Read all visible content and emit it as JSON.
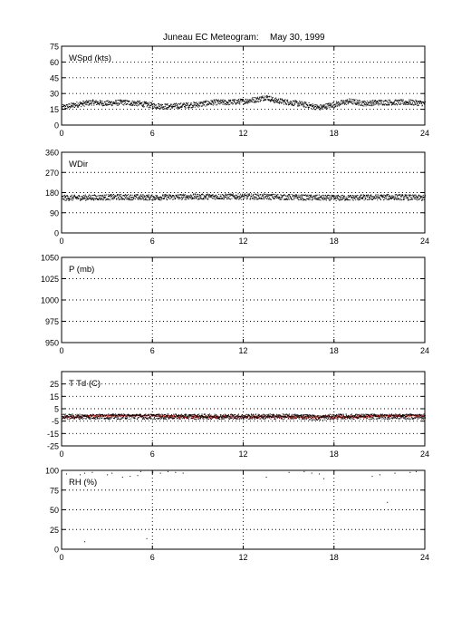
{
  "figure": {
    "title": "Juneau EC Meteogram:",
    "date": "May 30, 1999"
  },
  "chart_data": [
    {
      "type": "scatter",
      "label": "WSpd (kts)",
      "x_range": [
        0,
        24
      ],
      "x_ticks": [
        0,
        6,
        12,
        18,
        24
      ],
      "ylim": [
        0,
        75
      ],
      "y_ticks": [
        0,
        15,
        30,
        45,
        60,
        75
      ],
      "grid": true,
      "series": [
        {
          "color": "#000000",
          "marker": "dot",
          "x": [
            0,
            1,
            2,
            3,
            4,
            5,
            6,
            7,
            8,
            9,
            10,
            11,
            12,
            13,
            13.5,
            14,
            15,
            16,
            17,
            18,
            19,
            20,
            21,
            22,
            23,
            24
          ],
          "y": [
            17,
            20,
            22,
            21,
            22,
            21,
            19,
            18,
            19,
            20,
            22,
            22,
            23,
            25,
            27,
            24,
            22,
            20,
            17,
            20,
            23,
            21,
            22,
            22,
            22,
            21
          ]
        }
      ]
    },
    {
      "type": "scatter",
      "label": "WDir",
      "x_range": [
        0,
        24
      ],
      "x_ticks": [
        0,
        6,
        12,
        18,
        24
      ],
      "ylim": [
        0,
        360
      ],
      "y_ticks": [
        0,
        90,
        180,
        270,
        360
      ],
      "grid": true,
      "series": [
        {
          "color": "#000000",
          "marker": "dot",
          "x": [
            0,
            2,
            4,
            6,
            8,
            10,
            12,
            14,
            16,
            18,
            20,
            22,
            24
          ],
          "y": [
            158,
            160,
            162,
            160,
            163,
            164,
            164,
            163,
            160,
            158,
            160,
            162,
            158
          ]
        }
      ]
    },
    {
      "type": "scatter",
      "label": "P (mb)",
      "x_range": [
        0,
        24
      ],
      "x_ticks": [
        0,
        6,
        12,
        18,
        24
      ],
      "ylim": [
        950,
        1050
      ],
      "y_ticks": [
        950,
        975,
        1000,
        1025,
        1050
      ],
      "grid": true,
      "series": []
    },
    {
      "type": "scatter",
      "label": "T Td (C)",
      "x_range": [
        0,
        24
      ],
      "x_ticks": [
        0,
        6,
        12,
        18,
        24
      ],
      "ylim": [
        -25,
        35
      ],
      "y_ticks": [
        -25,
        -15,
        -5,
        5,
        15,
        25
      ],
      "grid": true,
      "series": [
        {
          "color": "#cc0000",
          "marker": "dot",
          "x": [
            0,
            1,
            2,
            4,
            6,
            8,
            10,
            12,
            14,
            16,
            17,
            17.5,
            18,
            20,
            21,
            22,
            24
          ],
          "y": [
            -1,
            -1,
            0,
            0,
            0,
            -1,
            -1,
            -1,
            -1,
            -1,
            -1,
            -1,
            -1,
            -1,
            0,
            0,
            0
          ]
        },
        {
          "color": "#000000",
          "marker": "dot",
          "x": [
            0,
            1,
            2,
            4,
            6,
            8,
            10,
            12,
            14,
            16,
            17,
            18,
            20,
            22,
            24
          ],
          "y": [
            -1,
            -1,
            -1,
            -1,
            -1,
            -1,
            -1,
            -1,
            -1,
            -1,
            -2,
            -1,
            -1,
            -1,
            -1
          ]
        }
      ]
    },
    {
      "type": "scatter",
      "label": "RH (%)",
      "x_range": [
        0,
        24
      ],
      "x_ticks": [
        0,
        6,
        12,
        18,
        24
      ],
      "ylim": [
        0,
        100
      ],
      "y_ticks": [
        0,
        25,
        50,
        75,
        100
      ],
      "grid": true,
      "series": [
        {
          "color": "#000000",
          "marker": "dot",
          "x": [
            0.3,
            1.2,
            1.5,
            2,
            3,
            3.3,
            4,
            4.5,
            5,
            5.2,
            6,
            6.5,
            7,
            7.5,
            8,
            13.5,
            15,
            16,
            16.5,
            17,
            17.3,
            20.5,
            21,
            22,
            23,
            23.4,
            5.6,
            1.5,
            21.5
          ],
          "y": [
            96,
            95,
            97,
            98,
            95,
            97,
            92,
            93,
            94,
            99,
            98,
            97,
            99,
            98,
            97,
            92,
            98,
            99,
            97,
            96,
            90,
            93,
            95,
            97,
            98,
            99,
            14,
            10,
            60
          ]
        }
      ]
    }
  ]
}
